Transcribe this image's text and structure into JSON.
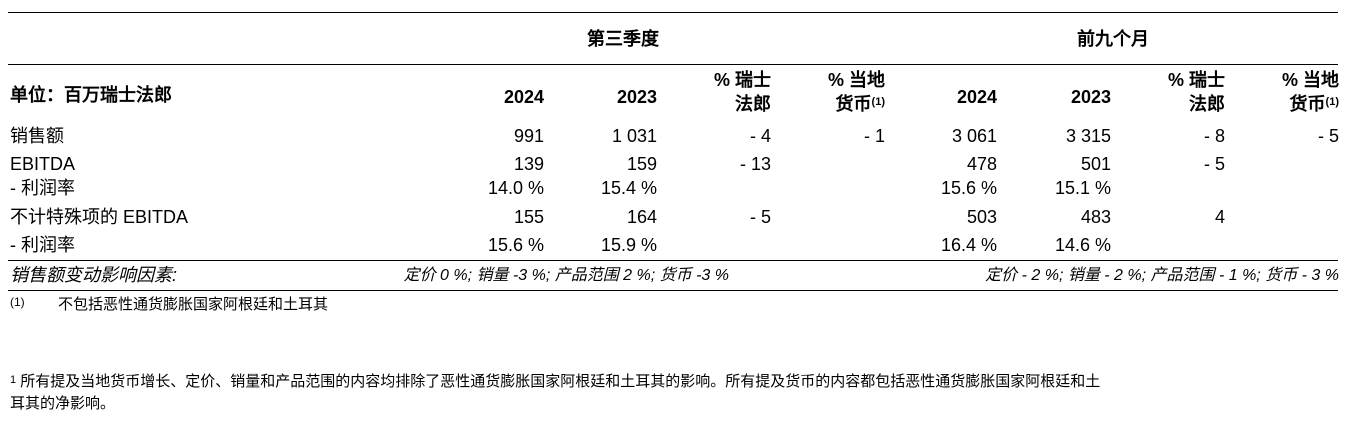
{
  "headers": {
    "q3_title": "第三季度",
    "nine_title": "前九个月",
    "unit_label": "单位：百万瑞士法郎",
    "col_2024": "2024",
    "col_2023": "2023",
    "chf_line1": "% 瑞士",
    "chf_line2": "法郎",
    "lc_line1": "% 当地",
    "lc_line2": "货币",
    "lc_fn": "(1)"
  },
  "rows": [
    {
      "label": "销售额",
      "q24": "991",
      "q23": "1 031",
      "qchf": "- 4",
      "qlc": "- 1",
      "n24": "3 061",
      "n23": "3 315",
      "nchf": "- 8",
      "nlc": "- 5"
    },
    {
      "label": "EBITDA",
      "q24": "139",
      "q23": "159",
      "qchf": "- 13",
      "qlc": "",
      "n24": "478",
      "n23": "501",
      "nchf": "- 5",
      "nlc": ""
    },
    {
      "label": "- 利润率",
      "q24": "14.0 %",
      "q23": "15.4 %",
      "qchf": "",
      "qlc": "",
      "n24": "15.6 %",
      "n23": "15.1 %",
      "nchf": "",
      "nlc": ""
    },
    {
      "label": "不计特殊项的 EBITDA",
      "q24": "155",
      "q23": "164",
      "qchf": "- 5",
      "qlc": "",
      "n24": "503",
      "n23": "483",
      "nchf": "4",
      "nlc": ""
    },
    {
      "label": "- 利润率",
      "q24": "15.6 %",
      "q23": "15.9 %",
      "qchf": "",
      "qlc": "",
      "n24": "16.4 %",
      "n23": "14.6 %",
      "nchf": "",
      "nlc": ""
    }
  ],
  "drivers": {
    "label": "销售额变动影响因素:",
    "q3": "定价 0 %; 销量 -3 %; 产品范围 2 %; 货币 -3 %",
    "nine": "定价 - 2 %; 销量 - 2 %; 产品范围 - 1 %; 货币 - 3 %"
  },
  "footnote": {
    "marker": "(1)",
    "text": "不包括恶性通货膨胀国家阿根廷和土耳其"
  },
  "bottom_note": {
    "marker": "1",
    "line1": " 所有提及当地货币增长、定价、销量和产品范围的内容均排除了恶性通货膨胀国家阿根廷和土耳其的影响。所有提及货币的内容都包括恶性通货膨胀国家阿根廷和土",
    "line2": "耳其的净影响。"
  }
}
